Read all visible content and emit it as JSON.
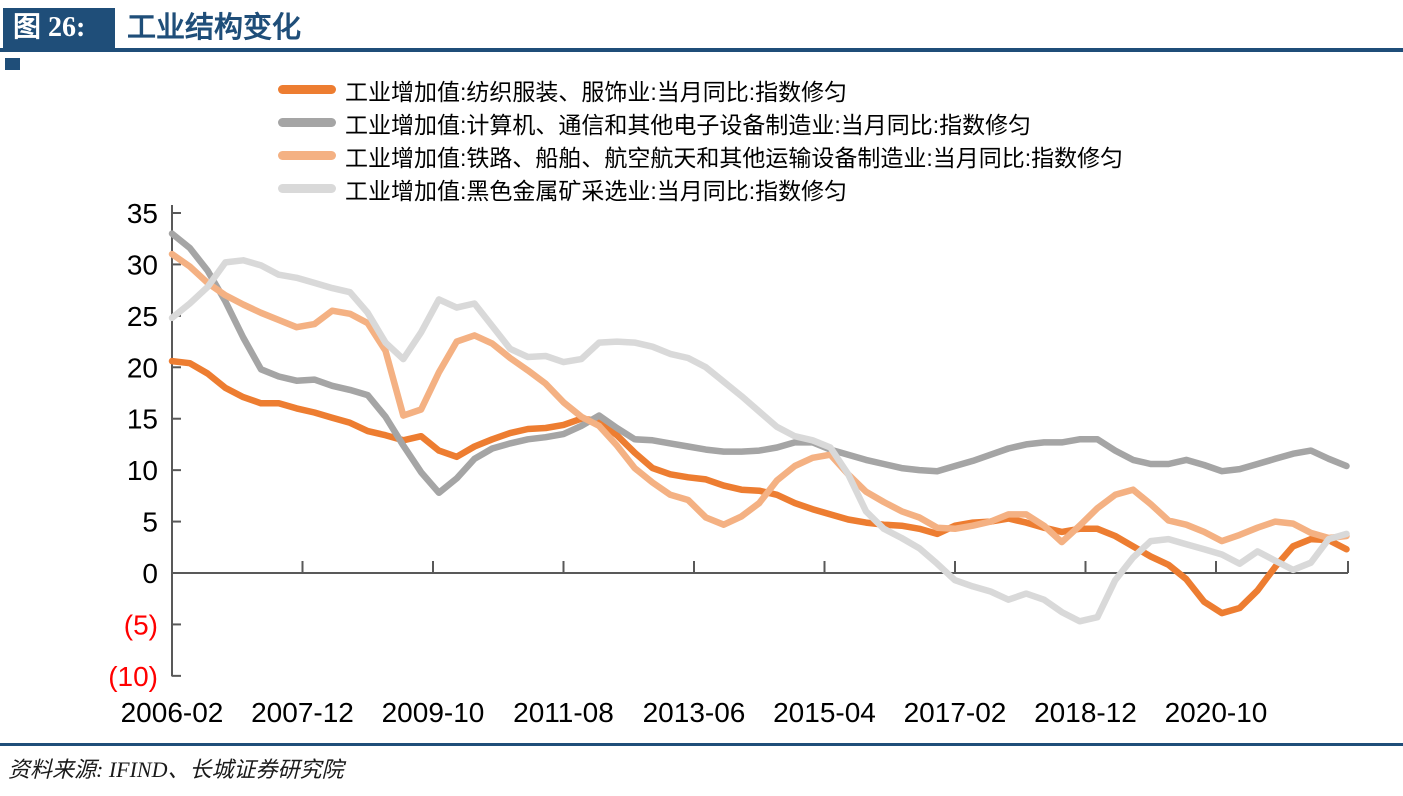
{
  "header": {
    "figure_label": "图 26:",
    "title": "工业结构变化",
    "accent_color": "#1F4E79"
  },
  "chart_data": {
    "type": "line",
    "title": "工业结构变化",
    "x_axis": {
      "start_month": "2006-02",
      "sample_step_months": 3,
      "tick_labels": [
        "2006-02",
        "2007-12",
        "2009-10",
        "2011-08",
        "2013-06",
        "2015-04",
        "2017-02",
        "2018-12",
        "2020-10"
      ],
      "tick_interval_months": 22
    },
    "y_axis": {
      "ylim": [
        -10,
        35
      ],
      "tick_values": [
        35,
        30,
        25,
        20,
        15,
        10,
        5,
        0,
        -5,
        -10
      ],
      "tick_labels": [
        "35",
        "30",
        "25",
        "20",
        "15",
        "10",
        "5",
        "0",
        "(5)",
        "(10)"
      ],
      "negative_label_color": "#FF0000",
      "label_color": "#000000"
    },
    "axis_color": "#595959",
    "grid": false,
    "legend_position": "top",
    "line_width": 6.5,
    "series": [
      {
        "name": "工业增加值:纺织服装、服饰业:当月同比:指数修匀",
        "color": "#ED7D31",
        "values": [
          20.6,
          20.4,
          19.4,
          18.0,
          17.1,
          16.5,
          16.5,
          16.0,
          15.6,
          15.1,
          14.6,
          13.8,
          13.4,
          12.9,
          13.3,
          11.9,
          11.3,
          12.3,
          13.0,
          13.6,
          14.0,
          14.1,
          14.4,
          15.0,
          14.8,
          13.4,
          11.7,
          10.2,
          9.6,
          9.3,
          9.1,
          8.5,
          8.1,
          8.0,
          7.6,
          6.8,
          6.2,
          5.7,
          5.2,
          4.9,
          4.7,
          4.6,
          4.3,
          3.8,
          4.6,
          4.9,
          5.0,
          5.3,
          4.9,
          4.4,
          4.0,
          4.3,
          4.3,
          3.6,
          2.6,
          1.6,
          0.8,
          -0.6,
          -2.8,
          -3.9,
          -3.4,
          -1.7,
          0.6,
          2.6,
          3.3,
          3.2,
          2.3
        ]
      },
      {
        "name": "工业增加值:计算机、通信和其他电子设备制造业:当月同比:指数修匀",
        "color": "#A5A5A5",
        "values": [
          33.0,
          31.6,
          29.4,
          26.4,
          22.9,
          19.8,
          19.1,
          18.7,
          18.8,
          18.2,
          17.8,
          17.3,
          15.2,
          12.4,
          9.8,
          7.8,
          9.2,
          11.1,
          12.1,
          12.6,
          13.0,
          13.2,
          13.5,
          14.3,
          15.3,
          14.1,
          13.0,
          12.9,
          12.6,
          12.3,
          12.0,
          11.8,
          11.8,
          11.9,
          12.2,
          12.7,
          12.7,
          12.0,
          11.5,
          11.0,
          10.6,
          10.2,
          10.0,
          9.9,
          10.4,
          10.9,
          11.5,
          12.1,
          12.5,
          12.7,
          12.7,
          13.0,
          13.0,
          11.9,
          11.0,
          10.6,
          10.6,
          11.0,
          10.5,
          9.9,
          10.1,
          10.6,
          11.1,
          11.6,
          11.9,
          11.1,
          10.4
        ]
      },
      {
        "name": "工业增加值:铁路、船舶、航空航天和其他运输设备制造业:当月同比:指数修匀",
        "color": "#F4B183",
        "values": [
          31.0,
          29.8,
          28.2,
          27.0,
          26.1,
          25.3,
          24.6,
          23.9,
          24.2,
          25.5,
          25.2,
          24.3,
          21.6,
          15.3,
          15.9,
          19.5,
          22.5,
          23.1,
          22.3,
          20.9,
          19.7,
          18.4,
          16.6,
          15.2,
          14.3,
          12.4,
          10.2,
          8.8,
          7.6,
          7.1,
          5.4,
          4.7,
          5.5,
          6.8,
          9.0,
          10.4,
          11.2,
          11.5,
          9.6,
          7.9,
          6.9,
          6.0,
          5.4,
          4.4,
          4.3,
          4.6,
          5.0,
          5.7,
          5.7,
          4.6,
          3.0,
          4.6,
          6.3,
          7.6,
          8.1,
          6.7,
          5.1,
          4.7,
          4.0,
          3.1,
          3.7,
          4.4,
          5.0,
          4.8,
          3.9,
          3.4,
          3.6
        ]
      },
      {
        "name": "工业增加值:黑色金属矿采选业:当月同比:指数修匀",
        "color": "#D9D9D9",
        "values": [
          24.8,
          26.2,
          27.8,
          30.2,
          30.4,
          29.9,
          29.0,
          28.7,
          28.2,
          27.7,
          27.3,
          25.3,
          22.4,
          20.8,
          23.4,
          26.6,
          25.8,
          26.2,
          24.0,
          21.8,
          21.0,
          21.1,
          20.5,
          20.8,
          22.4,
          22.5,
          22.4,
          22.0,
          21.3,
          20.9,
          20.0,
          18.6,
          17.2,
          15.7,
          14.2,
          13.3,
          12.9,
          12.2,
          9.6,
          6.0,
          4.3,
          3.4,
          2.4,
          0.9,
          -0.7,
          -1.3,
          -1.8,
          -2.6,
          -2.0,
          -2.6,
          -3.8,
          -4.7,
          -4.3,
          -0.7,
          1.5,
          3.1,
          3.3,
          2.8,
          2.3,
          1.8,
          0.9,
          2.1,
          1.2,
          0.3,
          1.0,
          3.3,
          3.8
        ]
      }
    ]
  },
  "footer": {
    "source_text": "资料来源: IFIND、长城证券研究院"
  }
}
